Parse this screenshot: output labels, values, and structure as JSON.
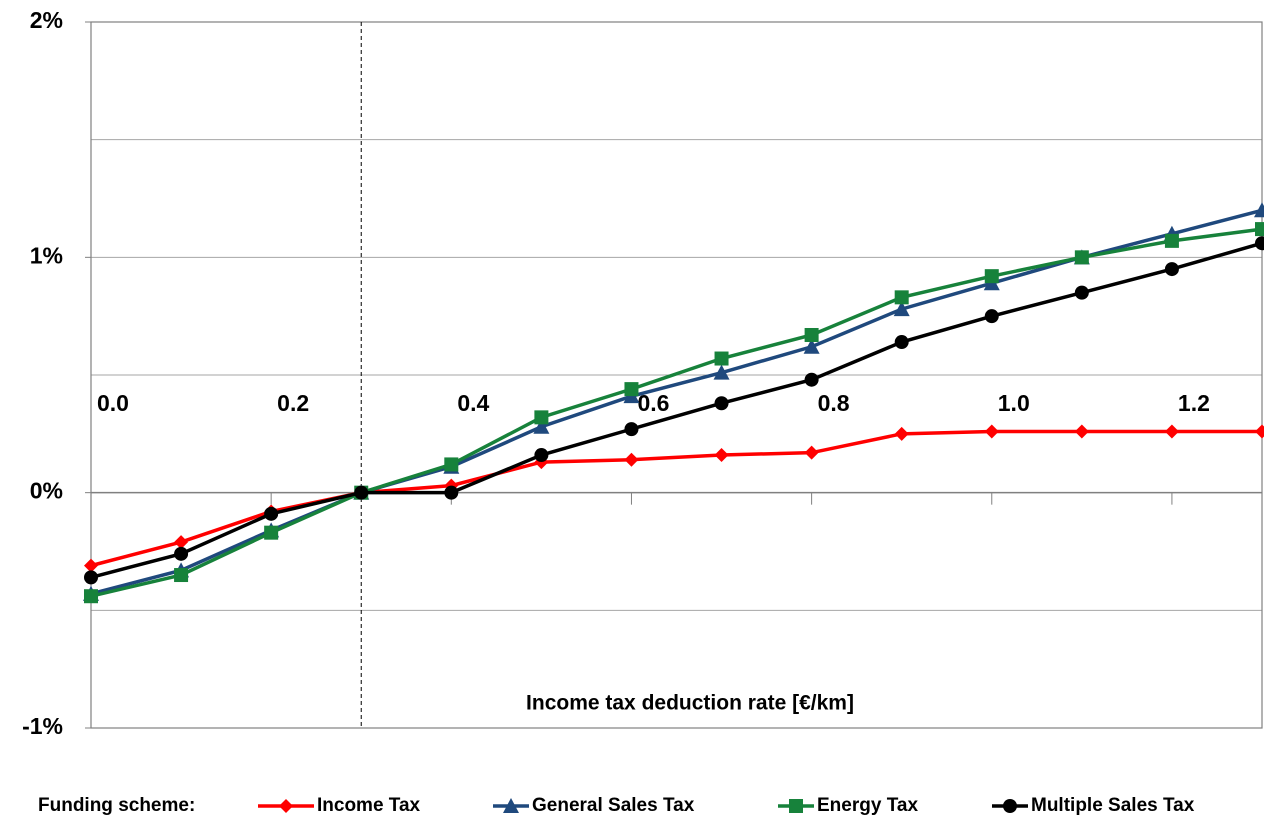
{
  "chart_data": {
    "type": "line",
    "x_label": "Income tax deduction rate [€/km]",
    "legend_title": "Funding scheme:",
    "legend_position": "bottom",
    "x": [
      0.0,
      0.1,
      0.2,
      0.3,
      0.4,
      0.5,
      0.6,
      0.7,
      0.8,
      0.9,
      1.0,
      1.1,
      1.2,
      1.3
    ],
    "xlim": [
      0,
      1.3
    ],
    "xticks": [
      {
        "value": 0,
        "label": "0.0"
      },
      0.2,
      0.4,
      0.6,
      0.8,
      {
        "value": 1,
        "label": "1.0"
      },
      1.2
    ],
    "ylim": [
      -1,
      2
    ],
    "yticks": [
      {
        "value": -1,
        "label": "-1%"
      },
      {
        "value": 0,
        "label": "0%"
      },
      {
        "value": 1,
        "label": "1%"
      },
      {
        "value": 2,
        "label": "2%"
      }
    ],
    "ygrid": [
      -1,
      -0.5,
      0,
      0.5,
      1,
      1.5,
      2
    ],
    "reference_x": 0.3,
    "series": [
      {
        "name": "Income Tax",
        "color": "#ff0000",
        "marker": "diamond",
        "values": [
          -0.31,
          -0.21,
          -0.08,
          0,
          0.03,
          0.13,
          0.14,
          0.16,
          0.17,
          0.25,
          0.26,
          0.26,
          0.26,
          0.26
        ]
      },
      {
        "name": "General Sales Tax",
        "color": "#1f497d",
        "marker": "triangle",
        "values": [
          -0.43,
          -0.33,
          -0.16,
          0,
          0.11,
          0.28,
          0.41,
          0.51,
          0.62,
          0.78,
          0.89,
          1.0,
          1.1,
          1.2
        ]
      },
      {
        "name": "Energy Tax",
        "color": "#17823b",
        "marker": "square",
        "values": [
          -0.44,
          -0.35,
          -0.17,
          0,
          0.12,
          0.32,
          0.44,
          0.57,
          0.67,
          0.83,
          0.92,
          1.0,
          1.07,
          1.12
        ]
      },
      {
        "name": "Multiple Sales Tax",
        "color": "#000000",
        "marker": "circle",
        "values": [
          -0.36,
          -0.26,
          -0.09,
          0,
          0.0,
          0.16,
          0.27,
          0.38,
          0.48,
          0.64,
          0.75,
          0.85,
          0.95,
          1.06
        ]
      }
    ]
  }
}
